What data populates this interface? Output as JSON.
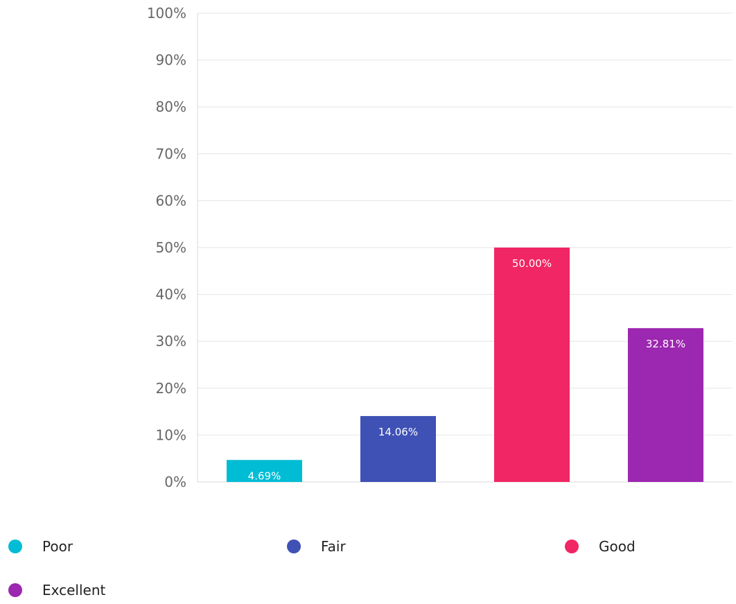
{
  "chart_data": {
    "type": "bar",
    "categories": [
      "Poor",
      "Fair",
      "Good",
      "Excellent"
    ],
    "values": [
      4.69,
      14.06,
      50.0,
      32.81
    ],
    "data_labels": [
      "4.69%",
      "14.06%",
      "50.00%",
      "32.81%"
    ],
    "colors": [
      "#00bcd4",
      "#3f51b5",
      "#f12664",
      "#9c27b0"
    ],
    "ylim": [
      0,
      100
    ],
    "yticks": [
      0,
      10,
      20,
      30,
      40,
      50,
      60,
      70,
      80,
      90,
      100
    ],
    "ytick_labels": [
      "0%",
      "10%",
      "20%",
      "30%",
      "40%",
      "50%",
      "60%",
      "70%",
      "80%",
      "90%",
      "100%"
    ],
    "grid": true,
    "legend_position": "bottom",
    "title": "",
    "xlabel": "",
    "ylabel": ""
  },
  "legend": {
    "items": [
      {
        "label": "Poor",
        "color": "#00bcd4"
      },
      {
        "label": "Fair",
        "color": "#3f51b5"
      },
      {
        "label": "Good",
        "color": "#f12664"
      },
      {
        "label": "Excellent",
        "color": "#9c27b0"
      }
    ]
  }
}
